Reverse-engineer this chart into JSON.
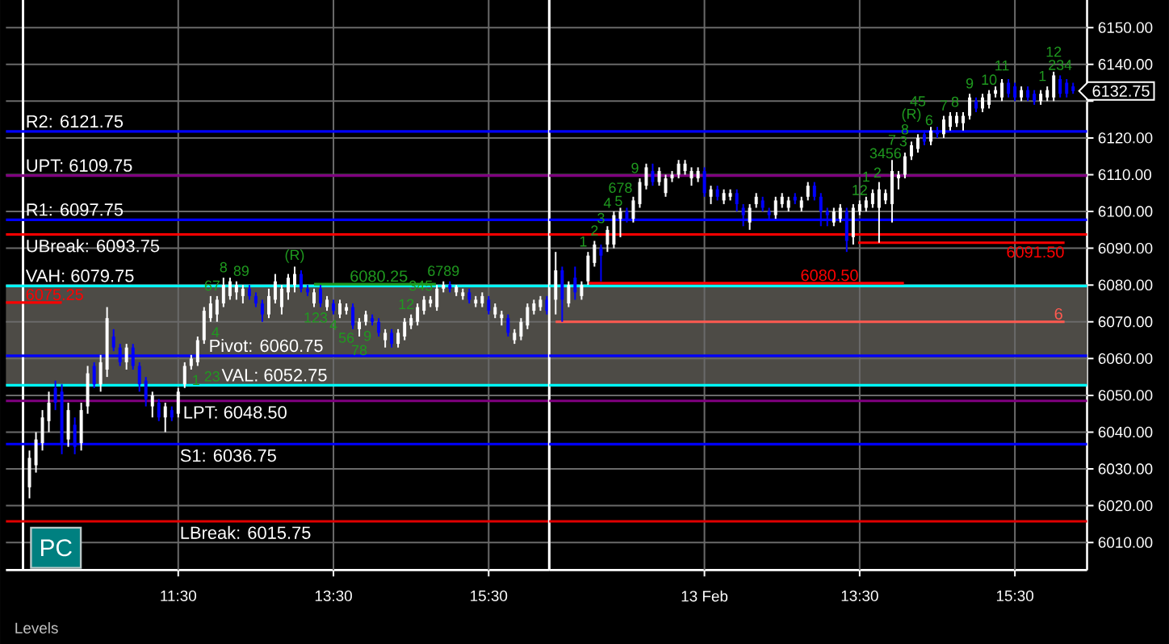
{
  "chart_data": [
    {
      "type": "candlestick",
      "x": [
        9.583,
        9.667,
        9.75,
        9.833,
        9.917,
        10,
        10.083,
        10.167,
        10.25,
        10.333,
        10.417,
        10.5,
        10.583,
        10.667,
        10.75,
        10.833,
        10.917,
        11,
        11.083,
        11.167,
        11.25,
        11.333,
        11.417,
        11.5,
        11.583,
        11.667,
        11.75,
        11.833,
        11.917,
        12,
        12.083,
        12.167,
        12.25,
        12.333,
        12.417,
        12.5,
        12.583,
        12.667,
        12.75,
        12.833,
        12.917,
        13,
        13.083,
        13.167,
        13.25,
        13.333,
        13.417,
        13.5,
        13.583,
        13.667,
        13.75,
        13.833,
        13.917,
        14,
        14.083,
        14.167,
        14.25,
        14.333,
        14.417,
        14.5,
        14.583,
        14.667,
        14.75,
        14.833,
        14.917,
        15,
        15.083,
        15.167,
        15.25,
        15.333,
        15.417,
        15.5,
        15.583,
        15.667,
        15.75,
        15.833,
        15.917,
        16,
        16.083,
        16.167,
        16.25
      ],
      "ohlc": [
        [
          6025,
          6035,
          6022,
          6033
        ],
        [
          6031,
          6040,
          6029,
          6038
        ],
        [
          6037,
          6046,
          6035,
          6044
        ],
        [
          6043,
          6051,
          6040,
          6048
        ],
        [
          6052,
          6054,
          6046,
          6048
        ],
        [
          6051,
          6053,
          6034,
          6037
        ],
        [
          6038,
          6048,
          6036,
          6046
        ],
        [
          6042,
          6044,
          6034,
          6036
        ],
        [
          6037,
          6048,
          6035,
          6046
        ],
        [
          6047,
          6058,
          6045,
          6056
        ],
        [
          6058,
          6059,
          6052,
          6053
        ],
        [
          6053,
          6061,
          6051,
          6059
        ],
        [
          6057,
          6074,
          6055,
          6071
        ],
        [
          6066,
          6068,
          6062,
          6063
        ],
        [
          6063,
          6064,
          6058,
          6059
        ],
        [
          6059,
          6064,
          6057,
          6063
        ],
        [
          6063,
          6064,
          6057,
          6058
        ],
        [
          6058,
          6059,
          6051,
          6053
        ],
        [
          6054,
          6055,
          6047,
          6049
        ],
        [
          6047,
          6051,
          6044,
          6050
        ],
        [
          6048,
          6049,
          6043,
          6044
        ],
        [
          6044,
          6048,
          6040,
          6047
        ],
        [
          6046,
          6047,
          6043,
          6044
        ],
        [
          6045,
          6052,
          6044,
          6051
        ],
        [
          6053,
          6059,
          6052,
          6058
        ],
        [
          6058,
          6061,
          6057,
          6060
        ],
        [
          6059,
          6066,
          6058,
          6065
        ],
        [
          6065,
          6074,
          6064,
          6073
        ],
        [
          6071,
          6077,
          6070,
          6075
        ],
        [
          6072,
          6077,
          6070,
          6076
        ],
        [
          6075,
          6082,
          6074,
          6080
        ],
        [
          6077,
          6082,
          6076,
          6081
        ],
        [
          6078,
          6081,
          6076,
          6080
        ],
        [
          6077,
          6080,
          6075,
          6079
        ],
        [
          6079,
          6080,
          6076,
          6077
        ],
        [
          6077,
          6078,
          6074,
          6075
        ],
        [
          6075,
          6076,
          6070,
          6072
        ],
        [
          6072,
          6079,
          6071,
          6077
        ],
        [
          6076,
          6083,
          6075,
          6081
        ],
        [
          6074,
          6080,
          6072,
          6079
        ],
        [
          6078,
          6083,
          6076,
          6082
        ],
        [
          6080,
          6085,
          6078,
          6083
        ],
        [
          6083,
          6084,
          6078,
          6079
        ],
        [
          6079,
          6080,
          6077,
          6078
        ],
        [
          6075,
          6079,
          6074,
          6078
        ],
        [
          6079,
          6080,
          6074,
          6075
        ],
        [
          6074,
          6077,
          6073,
          6076
        ],
        [
          6075,
          6076,
          6072,
          6073
        ],
        [
          6072,
          6076,
          6071,
          6075
        ],
        [
          6073,
          6075,
          6072,
          6074
        ],
        [
          6074,
          6075,
          6068,
          6069
        ],
        [
          6068,
          6071,
          6066,
          6070
        ],
        [
          6070,
          6073,
          6069,
          6072
        ],
        [
          6071,
          6072,
          6069,
          6070
        ],
        [
          6070,
          6071,
          6066,
          6067
        ],
        [
          6065,
          6068,
          6063,
          6067
        ],
        [
          6067,
          6068,
          6063,
          6064
        ],
        [
          6064,
          6068,
          6063,
          6067
        ],
        [
          6066,
          6071,
          6065,
          6070
        ],
        [
          6069,
          6072,
          6068,
          6071
        ],
        [
          6070,
          6075,
          6069,
          6074
        ],
        [
          6073,
          6077,
          6072,
          6076
        ],
        [
          6075,
          6077,
          6074,
          6076
        ],
        [
          6074,
          6080,
          6073,
          6079
        ],
        [
          6079,
          6081,
          6078,
          6080
        ],
        [
          6080,
          6081,
          6078,
          6079
        ],
        [
          6078,
          6080,
          6077,
          6079.5
        ],
        [
          6077,
          6079,
          6076,
          6078
        ],
        [
          6078,
          6079,
          6075,
          6076
        ],
        [
          6075,
          6077,
          6074,
          6076
        ],
        [
          6075,
          6078,
          6074,
          6077
        ],
        [
          6076,
          6077,
          6072,
          6073
        ],
        [
          6072,
          6075,
          6071,
          6074
        ],
        [
          6071,
          6073,
          6069,
          6072
        ],
        [
          6071,
          6072,
          6066,
          6067
        ],
        [
          6065,
          6068,
          6064,
          6067
        ],
        [
          6066,
          6071,
          6065,
          6070
        ],
        [
          6069,
          6075,
          6068,
          6074
        ],
        [
          6073,
          6076,
          6072,
          6075
        ],
        [
          6074,
          6077,
          6073,
          6076
        ],
        [
          6076,
          6077,
          6072,
          6073
        ]
      ],
      "colors": [
        "#ffffff",
        "#ffffff",
        "#ffffff",
        "#ffffff",
        "#0000ff",
        "#0000ff",
        "#ffffff",
        "#0000ff",
        "#ffffff",
        "#ffffff",
        "#0000ff",
        "#ffffff",
        "#ffffff",
        "#0000ff",
        "#0000ff",
        "#ffffff",
        "#0000ff",
        "#0000ff",
        "#0000ff",
        "#ffffff",
        "#0000ff",
        "#ffffff",
        "#0000ff",
        "#ffffff",
        "#ffffff",
        "#ffffff",
        "#ffffff",
        "#ffffff",
        "#ffffff",
        "#ffffff",
        "#ffffff",
        "#ffffff",
        "#ffffff",
        "#ffffff",
        "#0000ff",
        "#0000ff",
        "#0000ff",
        "#ffffff",
        "#ffffff",
        "#ffffff",
        "#ffffff",
        "#ffffff",
        "#0000ff",
        "#0000ff",
        "#ffffff",
        "#0000ff",
        "#ffffff",
        "#0000ff",
        "#ffffff",
        "#ffffff",
        "#0000ff",
        "#ffffff",
        "#ffffff",
        "#0000ff",
        "#0000ff",
        "#ffffff",
        "#0000ff",
        "#ffffff",
        "#ffffff",
        "#ffffff",
        "#ffffff",
        "#ffffff",
        "#ffffff",
        "#ffffff",
        "#ffffff",
        "#0000ff",
        "#ffffff",
        "#ffffff",
        "#0000ff",
        "#ffffff",
        "#ffffff",
        "#0000ff",
        "#ffffff",
        "#ffffff",
        "#0000ff",
        "#ffffff",
        "#ffffff",
        "#ffffff",
        "#ffffff",
        "#ffffff",
        "#0000ff"
      ],
      "series": [
        {
          "type": "line",
          "name": "6075.25",
          "color": "#ff0000",
          "x": [
            9.28,
            10.0
          ],
          "values": [
            6075.25,
            6075.25
          ]
        },
        {
          "type": "line",
          "name": "6080.25",
          "color": "#1f9a1f",
          "x": [
            13.25,
            14.82
          ],
          "values": [
            6080.25,
            6080.25
          ]
        }
      ],
      "xlim": [
        9.28,
        16.28
      ],
      "ylim": [
        6002.5,
        6157.5
      ],
      "xticks": [
        {
          "value": 11.5,
          "label": "11:30"
        },
        {
          "value": 13.5,
          "label": "13:30"
        },
        {
          "value": 15.5,
          "label": "15:30"
        }
      ],
      "yticks": [
        6010,
        6020,
        6030,
        6040,
        6050,
        6060,
        6070,
        6080,
        6090,
        6100,
        6110,
        6120,
        6130,
        6140,
        6150
      ],
      "tick_labels": "x",
      "grid": true,
      "ref_lines": [
        {
          "axis": "x",
          "value": 9.5,
          "color": "#ffffff"
        },
        {
          "axis": "y",
          "value": 6121.75,
          "label": "R2: 6121.75",
          "color": "#0000ff"
        },
        {
          "axis": "y",
          "value": 6109.75,
          "label": "UPT: 6109.75",
          "color": "#800080"
        },
        {
          "axis": "y",
          "value": 6097.75,
          "label": "R1: 6097.75",
          "color": "#0000ff"
        },
        {
          "axis": "y",
          "value": 6093.75,
          "label": "UBreak: 6093.75",
          "color": "#ff0000"
        },
        {
          "axis": "y",
          "value": 6079.75,
          "label": "VAH: 6079.75",
          "color": "#00ffff"
        },
        {
          "axis": "y",
          "value": 6060.75,
          "label": "Pivot: 6060.75",
          "color": "#0000ff"
        },
        {
          "axis": "y",
          "value": 6052.75,
          "label": "VAL: 6052.75",
          "color": "#00ffff"
        },
        {
          "axis": "y",
          "value": 6048.5,
          "label": "LPT: 6048.50",
          "color": "#800080"
        },
        {
          "axis": "y",
          "value": 6036.75,
          "label": "S1: 6036.75",
          "color": "#0000ff"
        },
        {
          "axis": "y",
          "value": 6015.75,
          "label": "LBreak: 6015.75",
          "color": "#e00000"
        }
      ],
      "bands": [
        {
          "axis": "y",
          "from": 6052.75,
          "to": 6079.75,
          "color": "#4d4b46"
        }
      ],
      "annotations": [
        {
          "text": "1",
          "x": 11.667,
          "y": 6057
        },
        {
          "text": "23",
          "x": 11.75,
          "y": 6058
        },
        {
          "text": "4",
          "x": 11.917,
          "y": 6070
        },
        {
          "text": "67",
          "x": 12,
          "y": 6077
        },
        {
          "text": "8",
          "x": 12.083,
          "y": 6082
        },
        {
          "text": "89",
          "x": 12.25,
          "y": 6081
        },
        {
          "text": "(R)",
          "x": 13,
          "y": 6085
        },
        {
          "text": "123",
          "x": 13.333,
          "y": 6074
        },
        {
          "text": "4",
          "x": 13.5,
          "y": 6072
        },
        {
          "text": "56",
          "x": 13.667,
          "y": 6072
        },
        {
          "text": "78",
          "x": 13.833,
          "y": 6066
        },
        {
          "text": "9",
          "x": 14,
          "y": 6069
        },
        {
          "text": "12",
          "x": 14.5,
          "y": 6072
        },
        {
          "text": "345",
          "x": 14.75,
          "y": 6077
        },
        {
          "text": "6789",
          "x": 14.917,
          "y": 6081
        },
        "PC"
      ]
    },
    {
      "type": "candlestick",
      "x": [
        9.583,
        9.667,
        9.75,
        9.833,
        9.917,
        10,
        10.083,
        10.167,
        10.25,
        10.333,
        10.417,
        10.5,
        10.583,
        10.667,
        10.75,
        10.833,
        10.917,
        11,
        11.083,
        11.167,
        11.25,
        11.333,
        11.417,
        11.5,
        11.583,
        11.667,
        11.75,
        11.833,
        11.917,
        12,
        12.083,
        12.167,
        12.25,
        12.333,
        12.417,
        12.5,
        12.583,
        12.667,
        12.75,
        12.833,
        12.917,
        13,
        13.083,
        13.167,
        13.25,
        13.333,
        13.417,
        13.5,
        13.583,
        13.667,
        13.75,
        13.833,
        13.917,
        14,
        14.083,
        14.167,
        14.25,
        14.333,
        14.417,
        14.5,
        14.583,
        14.667,
        14.75,
        14.833,
        14.917,
        15,
        15.083,
        15.167,
        15.25,
        15.333,
        15.417,
        15.5,
        15.583,
        15.667,
        15.75,
        15.833,
        15.917,
        16,
        16.083,
        16.167,
        16.25
      ],
      "ohlc": [
        [
          6076,
          6089,
          6072,
          6084
        ],
        [
          6084,
          6085,
          6070,
          6076
        ],
        [
          6075,
          6081,
          6074,
          6080
        ],
        [
          6082,
          6085,
          6076,
          6078
        ],
        [
          6077,
          6081,
          6076,
          6080
        ],
        [
          6081,
          6089,
          6080,
          6088
        ],
        [
          6086,
          6092,
          6085,
          6091
        ],
        [
          6090,
          6091,
          6081,
          6088
        ],
        [
          6091,
          6096,
          6089,
          6095
        ],
        [
          6091,
          6100,
          6090,
          6099
        ],
        [
          6098,
          6101,
          6093,
          6100
        ],
        [
          6100,
          6101,
          6097,
          6098
        ],
        [
          6098,
          6104,
          6097,
          6103
        ],
        [
          6102,
          6109,
          6101,
          6108
        ],
        [
          6107,
          6113,
          6106,
          6112
        ],
        [
          6111,
          6113,
          6107,
          6108
        ],
        [
          6108,
          6112,
          6107,
          6111
        ],
        [
          6105,
          6110,
          6104,
          6109
        ],
        [
          6109,
          6111,
          6108,
          6110
        ],
        [
          6110,
          6114,
          6109,
          6113
        ],
        [
          6111,
          6114,
          6110,
          6113
        ],
        [
          6109,
          6112,
          6107,
          6111
        ],
        [
          6109,
          6112,
          6108,
          6111
        ],
        [
          6111,
          6112,
          6104,
          6105
        ],
        [
          6104,
          6107,
          6102,
          6106
        ],
        [
          6106,
          6107,
          6103,
          6104
        ],
        [
          6103,
          6106,
          6102,
          6105
        ],
        [
          6104,
          6106,
          6103,
          6105
        ],
        [
          6105,
          6106,
          6100,
          6102
        ],
        [
          6101,
          6102,
          6096,
          6099
        ],
        [
          6097,
          6102,
          6095,
          6101
        ],
        [
          6102,
          6105,
          6101,
          6104
        ],
        [
          6103,
          6104,
          6100,
          6101
        ],
        [
          6100,
          6101,
          6098,
          6099
        ],
        [
          6099,
          6104,
          6098,
          6103
        ],
        [
          6102,
          6105,
          6101,
          6104
        ],
        [
          6101,
          6104,
          6100,
          6103
        ],
        [
          6104,
          6105,
          6102,
          6103
        ],
        [
          6101,
          6104,
          6100,
          6103
        ],
        [
          6104,
          6108,
          6103,
          6107
        ],
        [
          6107,
          6108,
          6103,
          6104
        ],
        [
          6104,
          6105,
          6096,
          6100
        ],
        [
          6100,
          6101,
          6096,
          6099
        ],
        [
          6097,
          6101,
          6096,
          6100
        ],
        [
          6098,
          6102,
          6097,
          6101
        ],
        [
          6100,
          6101,
          6089,
          6092
        ],
        [
          6093,
          6102,
          6091,
          6101
        ],
        [
          6100,
          6103,
          6099,
          6102
        ],
        [
          6101,
          6104,
          6100,
          6103
        ],
        [
          6102,
          6106,
          6101,
          6105
        ],
        [
          6101,
          6108,
          6091.5,
          6106
        ],
        [
          6103,
          6106,
          6102,
          6105
        ],
        [
          6102,
          6114,
          6097,
          6111
        ],
        [
          6109,
          6111,
          6106,
          6110
        ],
        [
          6110,
          6116,
          6109,
          6115
        ],
        [
          6115,
          6119,
          6114,
          6118
        ],
        [
          6117,
          6121,
          6116,
          6120
        ],
        [
          6121,
          6122,
          6118,
          6119
        ],
        [
          6119,
          6123,
          6118,
          6122
        ],
        [
          6122,
          6123,
          6120,
          6121
        ],
        [
          6121,
          6126,
          6120,
          6125
        ],
        [
          6123,
          6127,
          6122,
          6126
        ],
        [
          6124,
          6127,
          6123,
          6126
        ],
        [
          6124,
          6127,
          6122,
          6126
        ],
        [
          6126,
          6132,
          6125,
          6131
        ],
        [
          6130,
          6131,
          6127,
          6128
        ],
        [
          6128,
          6132,
          6127,
          6131
        ],
        [
          6129,
          6133,
          6128,
          6132
        ],
        [
          6132,
          6134,
          6131,
          6133
        ],
        [
          6131,
          6136,
          6130,
          6135
        ],
        [
          6135,
          6136,
          6131,
          6132
        ],
        [
          6134,
          6135,
          6130,
          6131
        ],
        [
          6131,
          6134,
          6130,
          6133
        ],
        [
          6133,
          6134,
          6130,
          6131
        ],
        [
          6132,
          6133,
          6129,
          6130
        ],
        [
          6130,
          6133,
          6129,
          6132
        ],
        [
          6131,
          6134,
          6130,
          6133
        ],
        [
          6131,
          6138,
          6130,
          6137
        ],
        [
          6136,
          6137,
          6131,
          6132
        ],
        [
          6135,
          6136,
          6131,
          6132
        ],
        [
          6134,
          6135,
          6132,
          6132.75
        ]
      ],
      "colors": [
        "#ffffff",
        "#0000ff",
        "#ffffff",
        "#0000ff",
        "#ffffff",
        "#ffffff",
        "#ffffff",
        "#0000ff",
        "#ffffff",
        "#ffffff",
        "#ffffff",
        "#0000ff",
        "#ffffff",
        "#ffffff",
        "#ffffff",
        "#0000ff",
        "#ffffff",
        "#ffffff",
        "#ffffff",
        "#ffffff",
        "#ffffff",
        "#ffffff",
        "#ffffff",
        "#0000ff",
        "#ffffff",
        "#0000ff",
        "#ffffff",
        "#ffffff",
        "#0000ff",
        "#0000ff",
        "#ffffff",
        "#ffffff",
        "#0000ff",
        "#0000ff",
        "#ffffff",
        "#ffffff",
        "#ffffff",
        "#0000ff",
        "#ffffff",
        "#ffffff",
        "#0000ff",
        "#0000ff",
        "#0000ff",
        "#ffffff",
        "#ffffff",
        "#0000ff",
        "#ffffff",
        "#ffffff",
        "#ffffff",
        "#ffffff",
        "#ffffff",
        "#ffffff",
        "#ffffff",
        "#ffffff",
        "#ffffff",
        "#ffffff",
        "#ffffff",
        "#0000ff",
        "#ffffff",
        "#0000ff",
        "#ffffff",
        "#ffffff",
        "#ffffff",
        "#ffffff",
        "#ffffff",
        "#0000ff",
        "#ffffff",
        "#ffffff",
        "#ffffff",
        "#ffffff",
        "#0000ff",
        "#0000ff",
        "#ffffff",
        "#0000ff",
        "#0000ff",
        "#ffffff",
        "#ffffff",
        "#ffffff",
        "#0000ff",
        "#0000ff",
        "#0000ff"
      ],
      "series": [
        {
          "type": "line",
          "name": "6080.50",
          "color": "#ff0000",
          "x": [
            10.0,
            14.07
          ],
          "values": [
            6080.5,
            6080.5
          ]
        },
        {
          "type": "line",
          "name": "6091.50",
          "color": "#ff0000",
          "x": [
            13.48,
            16.14
          ],
          "values": [
            6091.5,
            6091.5
          ]
        },
        {
          "type": "line",
          "name": "6",
          "color": "#ff5a50",
          "x": [
            9.583,
            16.14
          ],
          "values": [
            6070,
            6070
          ]
        }
      ],
      "xlim": [
        9.5,
        16.43
      ],
      "ylim": [
        6002.5,
        6157.5
      ],
      "xticks": [
        {
          "value": 11.5,
          "label": "13 Feb"
        },
        {
          "value": 13.5,
          "label": "13:30"
        },
        {
          "value": 15.5,
          "label": "15:30"
        }
      ],
      "yticks": [
        {
          "value": 6010,
          "label": "6010.00"
        },
        {
          "value": 6020,
          "label": "6020.00"
        },
        {
          "value": 6030,
          "label": "6030.00"
        },
        {
          "value": 6040,
          "label": "6040.00"
        },
        {
          "value": 6050,
          "label": "6050.00"
        },
        {
          "value": 6060,
          "label": "6060.00"
        },
        {
          "value": 6070,
          "label": "6070.00"
        },
        {
          "value": 6080,
          "label": "6080.00"
        },
        {
          "value": 6090,
          "label": "6090.00"
        },
        {
          "value": 6100,
          "label": "6100.00"
        },
        {
          "value": 6110,
          "label": "6110.00"
        },
        {
          "value": 6120,
          "label": "6120.00"
        },
        {
          "value": 6130,
          "label": null
        },
        {
          "value": 6140,
          "label": "6140.00"
        },
        {
          "value": 6150,
          "label": "6150.00"
        }
      ],
      "grid": true,
      "ref_lines": [
        {
          "axis": "x",
          "value": 9.5,
          "color": "#ffffff"
        },
        {
          "axis": "y",
          "value": 6121.75,
          "color": "#0000ff"
        },
        {
          "axis": "y",
          "value": 6109.75,
          "color": "#800080"
        },
        {
          "axis": "y",
          "value": 6097.75,
          "color": "#0000ff"
        },
        {
          "axis": "y",
          "value": 6093.75,
          "color": "#ff0000"
        },
        {
          "axis": "y",
          "value": 6079.75,
          "color": "#00ffff"
        },
        {
          "axis": "y",
          "value": 6060.75,
          "color": "#0000ff"
        },
        {
          "axis": "y",
          "value": 6052.75,
          "color": "#00ffff"
        },
        {
          "axis": "y",
          "value": 6048.5,
          "color": "#800080"
        },
        {
          "axis": "y",
          "value": 6036.75,
          "color": "#0000ff"
        },
        {
          "axis": "y",
          "value": 6015.75,
          "color": "#e00000"
        }
      ],
      "bands": [
        {
          "axis": "y",
          "from": 6052.75,
          "to": 6079.75,
          "color": "#4d4b46"
        }
      ],
      "annotations": [
        {
          "text": "1",
          "x": 10,
          "y": 6089
        },
        {
          "text": "2",
          "x": 10.083,
          "y": 6092
        },
        {
          "text": "3",
          "x": 10.167,
          "y": 6091
        },
        {
          "text": "4",
          "x": 10.25,
          "y": 6096
        },
        {
          "text": "5",
          "x": 10.333,
          "y": 6100
        },
        {
          "text": "678",
          "x": 10.417,
          "y": 6101
        },
        {
          "text": "9",
          "x": 10.667,
          "y": 6109
        },
        {
          "text": "12",
          "x": 13.5,
          "y": 6103
        },
        {
          "text": "1",
          "x": 13.583,
          "y": 6104
        },
        {
          "text": "3456",
          "x": 13.833,
          "y": 6106
        },
        {
          "text": "2",
          "x": 13.667,
          "y": 6106
        },
        {
          "text": "7",
          "x": 13.917,
          "y": 6114
        },
        {
          "text": "3",
          "x": 14,
          "y": 6111
        },
        {
          "text": "8",
          "x": 14.083,
          "y": 6116
        },
        {
          "text": "(R)",
          "x": 14.167,
          "y": 6119
        },
        {
          "text": "6",
          "x": 14.333,
          "y": 6122
        },
        {
          "text": "45",
          "x": 14.25,
          "y": 6121
        },
        {
          "text": "7",
          "x": 14.583,
          "y": 6126
        },
        {
          "text": "8",
          "x": 14.667,
          "y": 6127
        },
        {
          "text": "9",
          "x": 14.917,
          "y": 6132
        },
        {
          "text": "10",
          "x": 15.167,
          "y": 6133
        },
        {
          "text": "11",
          "x": 15.333,
          "y": 6136
        },
        {
          "text": "1",
          "x": 15.917,
          "y": 6134
        },
        {
          "text": "234",
          "x": 16.083,
          "y": 6137
        },
        {
          "text": "12",
          "x": 16,
          "y": 6138
        },
        {
          "text": "6132.75",
          "x": 16.25,
          "y": 6132.75
        },
        "Levels"
      ]
    }
  ]
}
